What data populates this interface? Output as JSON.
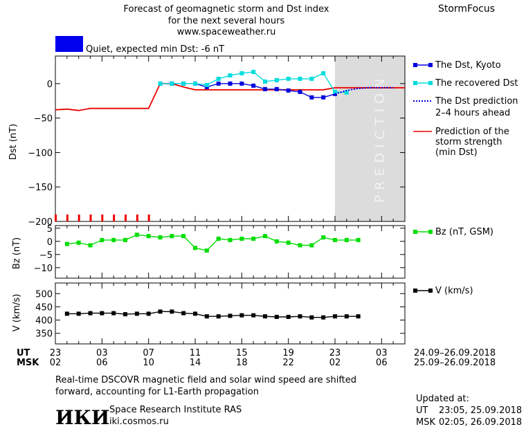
{
  "header": {
    "title_line1": "Forecast of geomagnetic storm and Dst index",
    "title_line2": "for the next several hours",
    "url": "www.spaceweather.ru",
    "brand": "StormFocus"
  },
  "status": {
    "text": "Quiet, expected min Dst: -6 nT",
    "color": "#0000ee"
  },
  "prediction_zone": {
    "label": "PREDICTION",
    "start_hour": 24,
    "end_hour": 30
  },
  "time_axis": {
    "start_hour": 0,
    "end_hour": 30,
    "ut_row_label": "UT",
    "msk_row_label": "MSK",
    "ut_ticks": [
      {
        "hour": 0,
        "label": "23"
      },
      {
        "hour": 4,
        "label": "03"
      },
      {
        "hour": 8,
        "label": "07"
      },
      {
        "hour": 12,
        "label": "11"
      },
      {
        "hour": 16,
        "label": "15"
      },
      {
        "hour": 20,
        "label": "19"
      },
      {
        "hour": 24,
        "label": "23"
      },
      {
        "hour": 28,
        "label": "03"
      }
    ],
    "msk_ticks": [
      {
        "hour": 0,
        "label": "02"
      },
      {
        "hour": 4,
        "label": "06"
      },
      {
        "hour": 8,
        "label": "10"
      },
      {
        "hour": 12,
        "label": "14"
      },
      {
        "hour": 16,
        "label": "18"
      },
      {
        "hour": 20,
        "label": "22"
      },
      {
        "hour": 24,
        "label": "02"
      },
      {
        "hour": 28,
        "label": "06"
      }
    ],
    "ut_range": "24.09–26.09.2018",
    "msk_range": "25.09–26.09.2018"
  },
  "chart_data": [
    {
      "type": "line",
      "panel": "dst",
      "ylabel": "Dst (nT)",
      "ylim": [
        -200,
        40
      ],
      "yticks": [
        0,
        -50,
        -100,
        -150,
        -200
      ],
      "ytick_labels": [
        "0",
        "−50",
        "−100",
        "−150",
        "−200"
      ],
      "series": [
        {
          "name": "The Dst, Kyoto",
          "color": "#0000dd",
          "style": "line-square",
          "x": [
            9,
            10,
            11,
            12,
            13,
            14,
            15,
            16,
            17,
            18,
            19,
            20,
            21,
            22,
            23,
            24
          ],
          "y": [
            0,
            0,
            0,
            0,
            -5,
            0,
            0,
            0,
            -3,
            -8,
            -8,
            -10,
            -12,
            -20,
            -20,
            -15
          ]
        },
        {
          "name": "The recovered Dst",
          "color": "#00dddd",
          "style": "line-square",
          "x": [
            9,
            10,
            11,
            12,
            13,
            14,
            15,
            16,
            17,
            18,
            19,
            20,
            21,
            22,
            23,
            24,
            25
          ],
          "y": [
            0,
            0,
            0,
            0,
            -2,
            7,
            12,
            15,
            17,
            3,
            5,
            7,
            7,
            7,
            15,
            -12,
            -13
          ]
        },
        {
          "name": "The Dst prediction",
          "name_line2": "2–4 hours ahead",
          "color": "#0000dd",
          "style": "dotted",
          "x": [
            24,
            25,
            26,
            27,
            28,
            29
          ],
          "y": [
            -15,
            -10,
            -7,
            -6,
            -6,
            -6
          ]
        },
        {
          "name": "Prediction of the",
          "name_line2": "storm strength",
          "name_line3": "(min Dst)",
          "color": "#ee0000",
          "style": "line",
          "x": [
            0,
            1,
            2,
            3,
            4,
            5,
            6,
            7,
            8,
            9,
            10,
            11,
            12,
            13,
            14,
            15,
            16,
            17,
            18,
            19,
            20,
            21,
            22,
            23,
            24,
            25,
            26,
            27,
            28,
            29,
            30
          ],
          "y": [
            -38,
            -37,
            -39,
            -36,
            -36,
            -36,
            -36,
            -36,
            -36,
            0,
            0,
            -5,
            -9,
            -9,
            -9,
            -9,
            -9,
            -9,
            -9,
            -9,
            -9,
            -9,
            -9,
            -9,
            -6,
            -6,
            -6,
            -6,
            -6,
            -6,
            -6
          ]
        }
      ],
      "kp_bars": {
        "color": "#ee0000",
        "x": [
          0,
          1,
          2,
          3,
          4,
          5,
          6,
          7,
          8
        ],
        "value": -190
      }
    },
    {
      "type": "line",
      "panel": "bz",
      "ylabel": "Bz (nT)",
      "ylim": [
        -14,
        6
      ],
      "yticks": [
        5,
        0,
        -5,
        -10
      ],
      "ytick_labels": [
        "5",
        "0",
        "−5",
        "−10"
      ],
      "series": [
        {
          "name": "Bz (nT, GSM)",
          "color": "#00dd00",
          "style": "line-square",
          "x": [
            1,
            2,
            3,
            4,
            5,
            6,
            7,
            8,
            9,
            10,
            11,
            12,
            13,
            14,
            15,
            16,
            17,
            18,
            19,
            20,
            21,
            22,
            23,
            24,
            25,
            26
          ],
          "y": [
            -1,
            -0.5,
            -1.5,
            0.5,
            0.5,
            0.5,
            2.5,
            2,
            1.5,
            2,
            2,
            -2.5,
            -3.5,
            1,
            0.5,
            1,
            1,
            2,
            0,
            -0.5,
            -1.5,
            -1.5,
            1.5,
            0.5,
            0.5,
            0.5
          ]
        }
      ]
    },
    {
      "type": "line",
      "panel": "v",
      "ylabel": "V (km/s)",
      "ylim": [
        310,
        540
      ],
      "yticks": [
        500,
        450,
        400,
        350
      ],
      "ytick_labels": [
        "500",
        "450",
        "400",
        "350"
      ],
      "series": [
        {
          "name": "V (km/s)",
          "color": "#000000",
          "style": "line-square",
          "x": [
            1,
            2,
            3,
            4,
            5,
            6,
            7,
            8,
            9,
            10,
            11,
            12,
            13,
            14,
            15,
            16,
            17,
            18,
            19,
            20,
            21,
            22,
            23,
            24,
            25,
            26
          ],
          "y": [
            424,
            424,
            426,
            426,
            426,
            422,
            424,
            424,
            432,
            432,
            426,
            424,
            414,
            414,
            416,
            418,
            418,
            414,
            412,
            412,
            414,
            410,
            410,
            414,
            414,
            414
          ]
        }
      ]
    }
  ],
  "footer": {
    "note_line1": "Real-time DSCOVR magnetic field and solar wind speed are shifted",
    "note_line2": "forward, accounting for L1-Earth propagation",
    "logo_text": "ИКИ",
    "institute": "Space Research Institute RAS",
    "site": "iki.cosmos.ru",
    "updated_label": "Updated at:",
    "updated_ut_label": "UT",
    "updated_ut": "23:05, 25.09.2018",
    "updated_msk_label": "MSK",
    "updated_msk": "02:05, 26.09.2018"
  }
}
